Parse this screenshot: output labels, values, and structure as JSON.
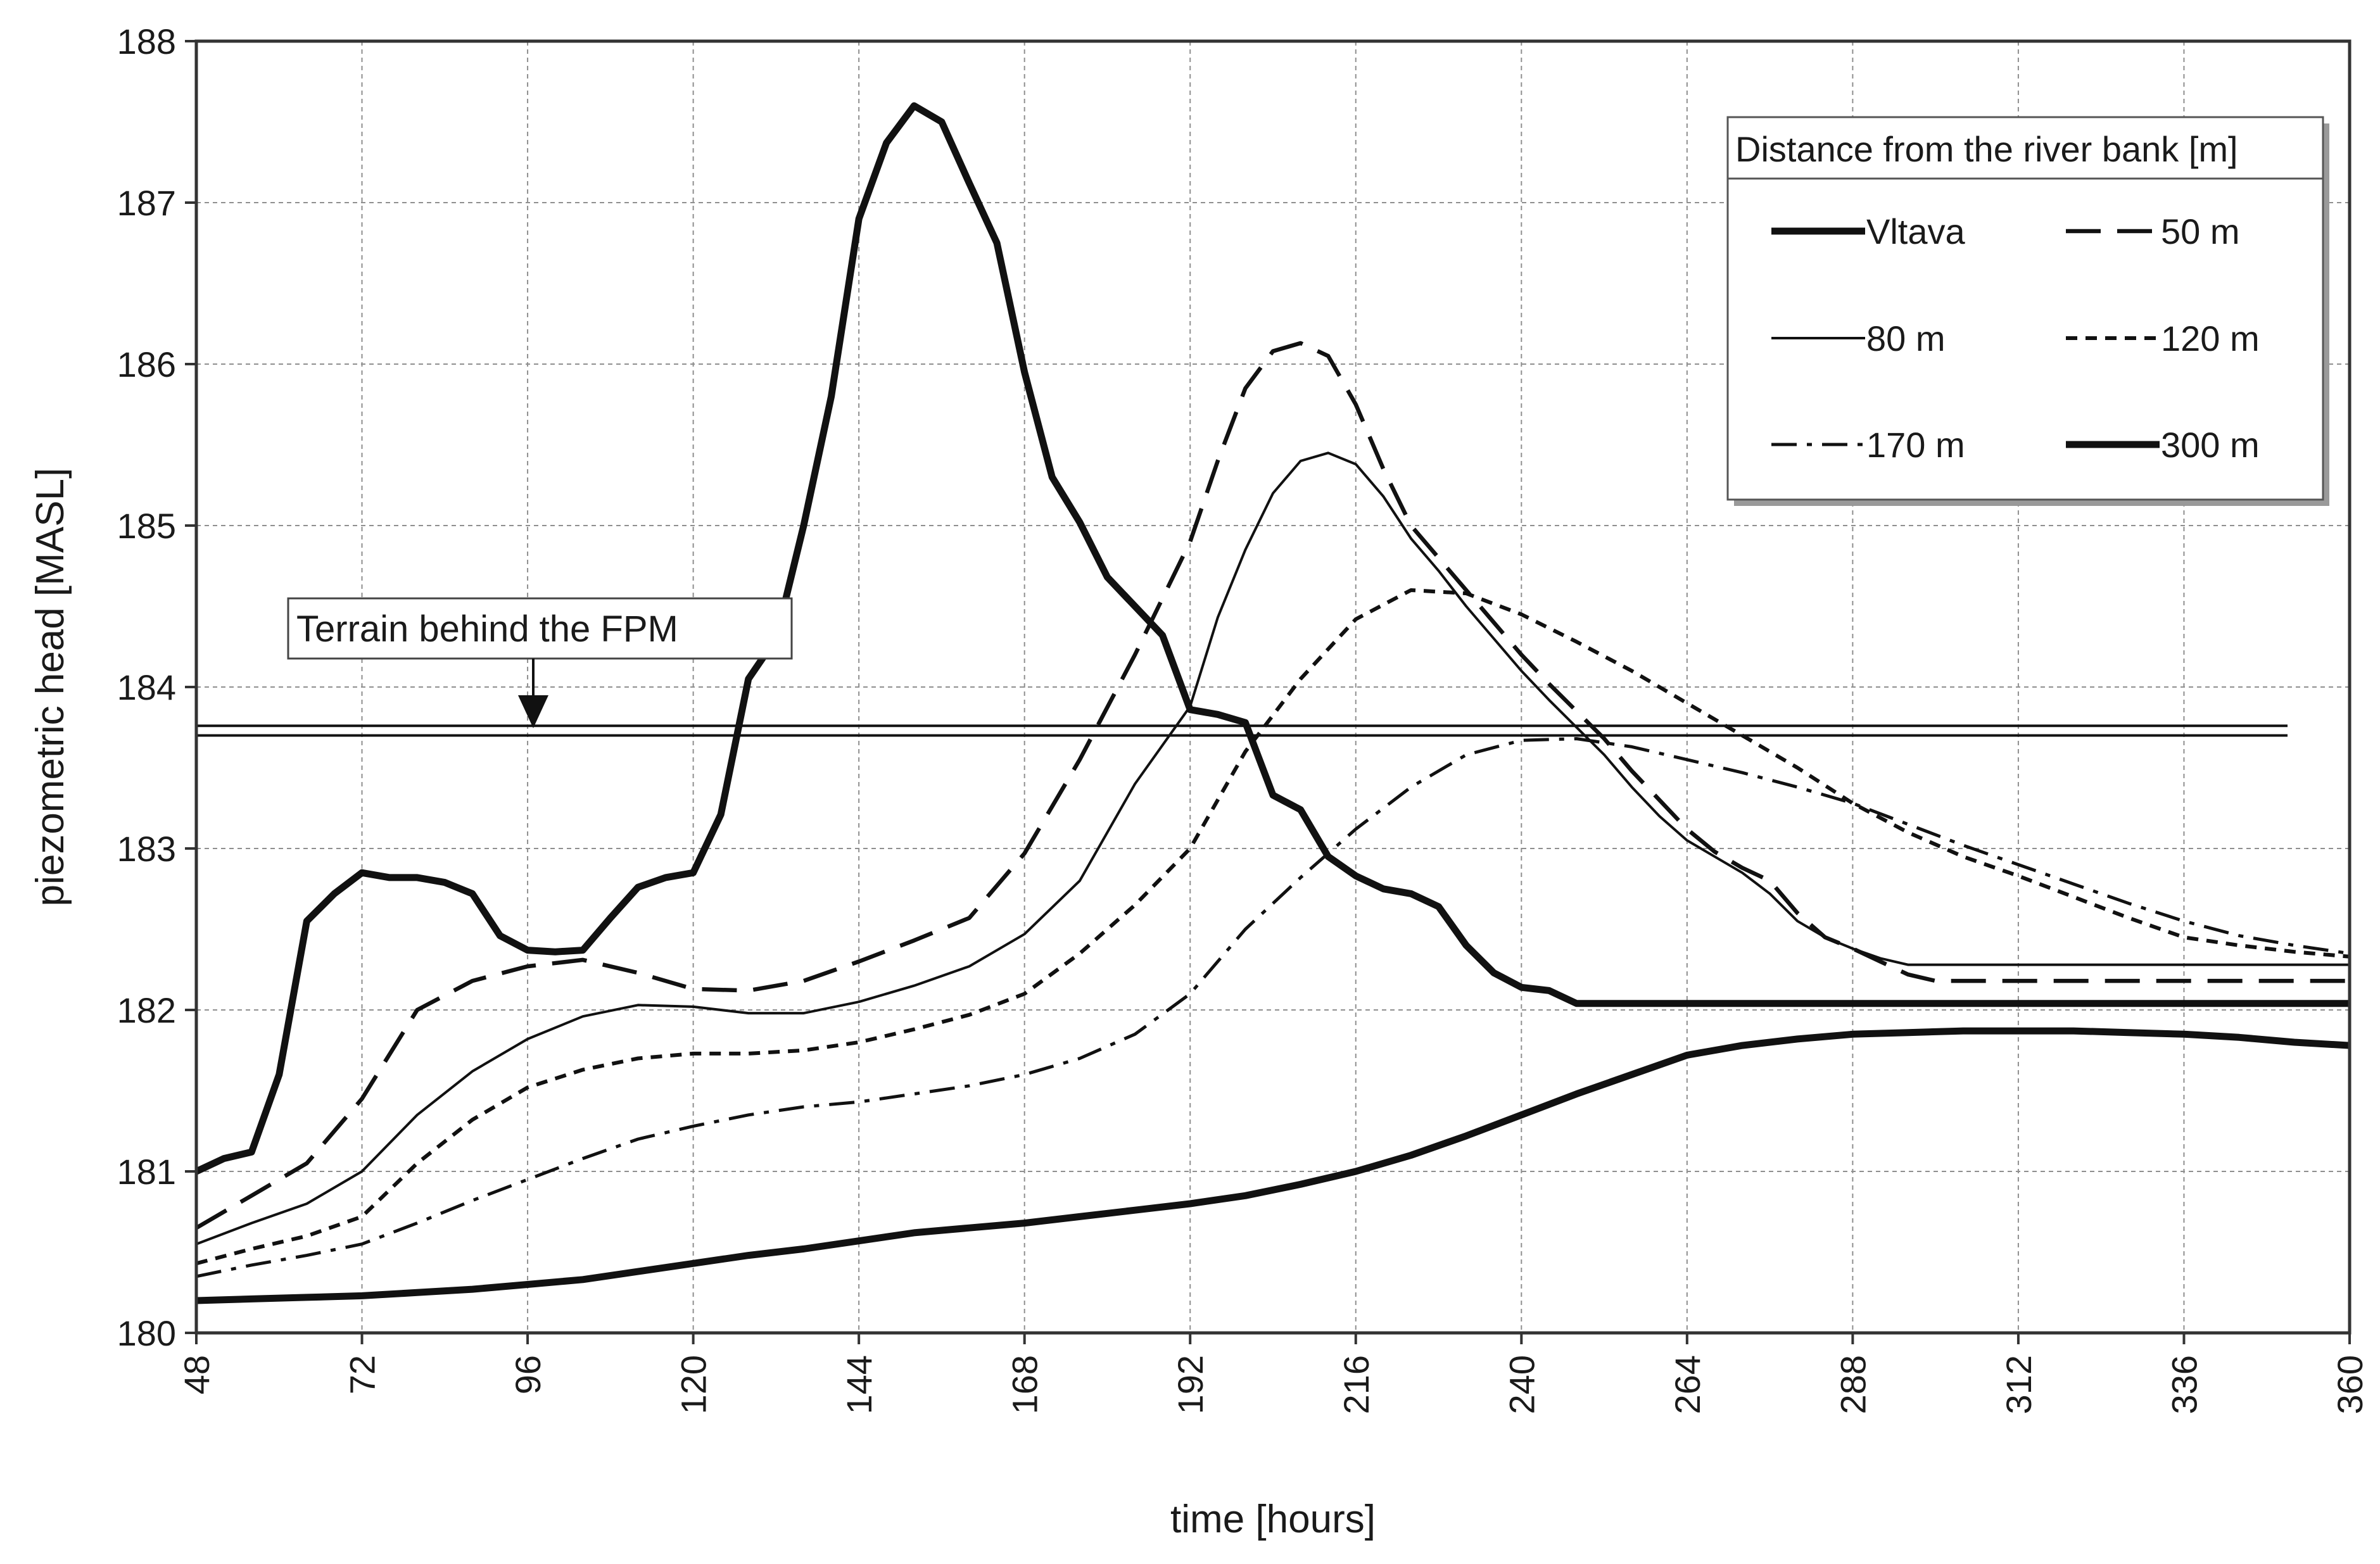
{
  "chart_data": {
    "type": "line",
    "xlabel": "time [hours]",
    "ylabel": "piezometric head [MASL]",
    "xlim": [
      48,
      360
    ],
    "ylim": [
      180,
      188
    ],
    "xticks": [
      48,
      72,
      96,
      120,
      144,
      168,
      192,
      216,
      240,
      264,
      288,
      312,
      336,
      360
    ],
    "yticks": [
      180,
      181,
      182,
      183,
      184,
      185,
      186,
      187,
      188
    ],
    "grid": true,
    "legend": {
      "title": "Distance from the river bank [m]",
      "placement": "top-right",
      "columns": 2
    },
    "series": [
      {
        "name": "Vltava",
        "style": "thick-solid",
        "x": [
          48,
          52,
          56,
          60,
          64,
          68,
          72,
          76,
          80,
          84,
          88,
          92,
          96,
          100,
          104,
          108,
          112,
          116,
          120,
          124,
          128,
          132,
          136,
          140,
          144,
          148,
          152,
          156,
          160,
          164,
          168,
          172,
          176,
          180,
          184,
          188,
          192,
          196,
          200,
          204,
          208,
          212,
          216,
          220,
          224,
          228,
          232,
          236,
          240,
          244,
          248,
          252,
          256,
          260,
          264,
          268,
          272,
          276,
          280,
          284,
          288,
          292,
          296,
          300,
          304,
          308,
          312,
          316,
          320,
          324,
          328,
          332,
          336,
          340,
          344,
          348,
          352,
          356,
          360
        ],
        "values": [
          181.0,
          181.08,
          181.12,
          181.6,
          182.55,
          182.72,
          182.85,
          182.82,
          182.82,
          182.79,
          182.72,
          182.46,
          182.37,
          182.36,
          182.37,
          182.57,
          182.76,
          182.82,
          182.85,
          183.21,
          184.05,
          184.3,
          185.0,
          185.8,
          186.9,
          187.37,
          187.6,
          187.5,
          187.12,
          186.75,
          185.95,
          185.3,
          185.02,
          184.68,
          184.5,
          184.32,
          183.86,
          183.83,
          183.78,
          183.33,
          183.24,
          182.95,
          182.83,
          182.75,
          182.72,
          182.64,
          182.4,
          182.23,
          182.14,
          182.12,
          182.04,
          182.04,
          182.04,
          182.04,
          182.04,
          182.04,
          182.04,
          182.04,
          182.04,
          182.04,
          182.04,
          182.04,
          182.04,
          182.04,
          182.04,
          182.04,
          182.04,
          182.04,
          182.04,
          182.04,
          182.04,
          182.04,
          182.04,
          182.04,
          182.04,
          182.04,
          182.04,
          182.04,
          182.04
        ]
      },
      {
        "name": "50 m",
        "style": "long-dash",
        "x": [
          48,
          56,
          64,
          72,
          80,
          88,
          96,
          104,
          112,
          120,
          128,
          136,
          144,
          152,
          160,
          168,
          176,
          184,
          192,
          196,
          200,
          204,
          208,
          212,
          216,
          220,
          224,
          228,
          232,
          236,
          240,
          244,
          248,
          252,
          256,
          260,
          264,
          268,
          272,
          276,
          280,
          284,
          288,
          292,
          296,
          300,
          304,
          308,
          312,
          316,
          320,
          324,
          328,
          332,
          336,
          340,
          344,
          348,
          352,
          356,
          360
        ],
        "values": [
          180.65,
          180.85,
          181.05,
          181.45,
          182.0,
          182.18,
          182.27,
          182.31,
          182.23,
          182.13,
          182.12,
          182.18,
          182.3,
          182.43,
          182.57,
          182.97,
          183.55,
          184.2,
          184.9,
          185.4,
          185.85,
          186.08,
          186.13,
          186.05,
          185.75,
          185.35,
          185.0,
          184.8,
          184.6,
          184.4,
          184.2,
          184.02,
          183.85,
          183.68,
          183.48,
          183.3,
          183.12,
          182.98,
          182.88,
          182.8,
          182.6,
          182.45,
          182.38,
          182.3,
          182.22,
          182.18,
          182.18,
          182.18,
          182.18,
          182.18,
          182.18,
          182.18,
          182.18,
          182.18,
          182.18,
          182.18,
          182.18,
          182.18,
          182.18,
          182.18,
          182.18
        ]
      },
      {
        "name": "80 m",
        "style": "thin-solid",
        "x": [
          48,
          56,
          64,
          72,
          80,
          88,
          96,
          104,
          112,
          120,
          128,
          136,
          144,
          152,
          160,
          168,
          176,
          184,
          192,
          196,
          200,
          204,
          208,
          212,
          216,
          220,
          224,
          228,
          232,
          236,
          240,
          244,
          248,
          252,
          256,
          260,
          264,
          268,
          272,
          276,
          280,
          284,
          288,
          292,
          296,
          300,
          304,
          308,
          312,
          316,
          320,
          324,
          328,
          332,
          336,
          340,
          344,
          348,
          352,
          356,
          360
        ],
        "values": [
          180.55,
          180.68,
          180.8,
          181.0,
          181.35,
          181.62,
          181.82,
          181.96,
          182.03,
          182.02,
          181.98,
          181.98,
          182.05,
          182.15,
          182.27,
          182.47,
          182.8,
          183.4,
          183.88,
          184.43,
          184.85,
          185.2,
          185.4,
          185.45,
          185.38,
          185.18,
          184.92,
          184.72,
          184.5,
          184.3,
          184.1,
          183.92,
          183.75,
          183.58,
          183.38,
          183.2,
          183.05,
          182.95,
          182.85,
          182.72,
          182.55,
          182.45,
          182.38,
          182.32,
          182.28,
          182.28,
          182.28,
          182.28,
          182.28,
          182.28,
          182.28,
          182.28,
          182.28,
          182.28,
          182.28,
          182.28,
          182.28,
          182.28,
          182.28,
          182.28,
          182.28
        ]
      },
      {
        "name": "120 m",
        "style": "short-dash",
        "x": [
          48,
          56,
          64,
          72,
          80,
          88,
          96,
          104,
          112,
          120,
          128,
          136,
          144,
          152,
          160,
          168,
          176,
          184,
          192,
          200,
          208,
          216,
          224,
          232,
          240,
          248,
          256,
          264,
          272,
          280,
          288,
          296,
          304,
          312,
          320,
          328,
          336,
          344,
          352,
          360
        ],
        "values": [
          180.43,
          180.52,
          180.6,
          180.72,
          181.05,
          181.32,
          181.52,
          181.63,
          181.7,
          181.73,
          181.73,
          181.75,
          181.8,
          181.88,
          181.97,
          182.1,
          182.35,
          182.65,
          183.0,
          183.6,
          184.05,
          184.42,
          184.6,
          184.58,
          184.45,
          184.28,
          184.1,
          183.9,
          183.7,
          183.5,
          183.28,
          183.1,
          182.95,
          182.83,
          182.7,
          182.57,
          182.45,
          182.4,
          182.36,
          182.33
        ]
      },
      {
        "name": "170 m",
        "style": "dash-dot",
        "x": [
          48,
          56,
          64,
          72,
          80,
          88,
          96,
          104,
          112,
          120,
          128,
          136,
          144,
          152,
          160,
          168,
          176,
          184,
          192,
          200,
          208,
          216,
          224,
          232,
          240,
          248,
          256,
          264,
          272,
          280,
          288,
          296,
          304,
          312,
          320,
          328,
          336,
          344,
          352,
          360
        ],
        "values": [
          180.35,
          180.42,
          180.48,
          180.55,
          180.68,
          180.82,
          180.95,
          181.08,
          181.2,
          181.28,
          181.35,
          181.4,
          181.43,
          181.48,
          181.53,
          181.6,
          181.7,
          181.85,
          182.1,
          182.5,
          182.82,
          183.12,
          183.38,
          183.58,
          183.67,
          183.68,
          183.63,
          183.55,
          183.47,
          183.38,
          183.28,
          183.15,
          183.02,
          182.9,
          182.78,
          182.66,
          182.55,
          182.46,
          182.4,
          182.35
        ]
      },
      {
        "name": "300 m",
        "style": "thick-solid",
        "x": [
          48,
          56,
          64,
          72,
          80,
          88,
          96,
          104,
          112,
          120,
          128,
          136,
          144,
          152,
          160,
          168,
          176,
          184,
          192,
          200,
          208,
          216,
          224,
          232,
          240,
          248,
          256,
          264,
          272,
          280,
          288,
          296,
          304,
          312,
          320,
          328,
          336,
          344,
          352,
          360
        ],
        "values": [
          180.2,
          180.21,
          180.22,
          180.23,
          180.25,
          180.27,
          180.3,
          180.33,
          180.38,
          180.43,
          180.48,
          180.52,
          180.57,
          180.62,
          180.65,
          180.68,
          180.72,
          180.76,
          180.8,
          180.85,
          180.92,
          181.0,
          181.1,
          181.22,
          181.35,
          181.48,
          181.6,
          181.72,
          181.78,
          181.82,
          181.85,
          181.86,
          181.87,
          181.87,
          181.87,
          181.86,
          181.85,
          181.83,
          181.8,
          181.78
        ]
      }
    ],
    "reference_lines": [
      {
        "name": "Terrain behind the FPM",
        "values": [
          183.76,
          183.7
        ]
      }
    ],
    "annotations": [
      {
        "text": "Terrain behind the FPM",
        "points_to": "Terrain line",
        "at_x": 96
      }
    ]
  }
}
